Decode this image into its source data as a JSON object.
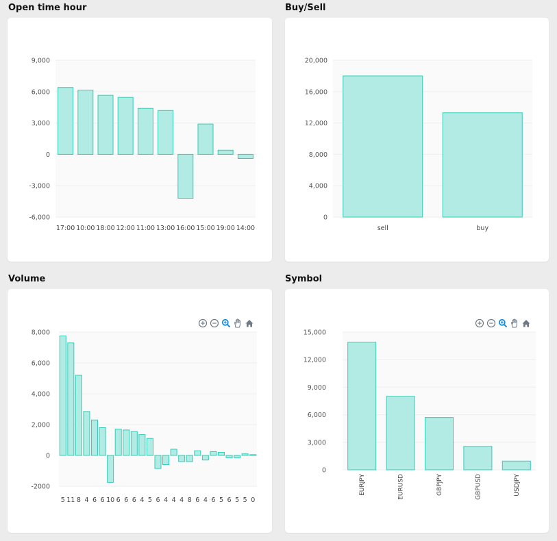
{
  "panels": {
    "open_time": {
      "title": "Open time hour"
    },
    "buy_sell": {
      "title": "Buy/Sell"
    },
    "volume": {
      "title": "Volume"
    },
    "symbol": {
      "title": "Symbol"
    }
  },
  "toolbar_icons": [
    "zoom-in-icon",
    "zoom-out-icon",
    "zoom-selection-icon",
    "pan-icon",
    "reset-home-icon"
  ],
  "colors": {
    "bar_fill": "#b2ebe3",
    "bar_stroke": "#33cdb6",
    "zoom_active": "#1a8ce0",
    "icon_gray": "#6e7a86"
  },
  "chart_data": [
    {
      "id": "open_time",
      "type": "bar",
      "title": "Open time hour",
      "categories": [
        "17:00",
        "10:00",
        "18:00",
        "12:00",
        "11:00",
        "13:00",
        "16:00",
        "15:00",
        "19:00",
        "14:00"
      ],
      "values": [
        6400,
        6150,
        5650,
        5450,
        4400,
        4200,
        -4200,
        2900,
        400,
        -400
      ],
      "ylim": [
        -6000,
        9000
      ],
      "yticks": [
        -6000,
        -3000,
        0,
        3000,
        6000,
        9000
      ],
      "ytick_labels": [
        "-6,000",
        "-3,000",
        "0",
        "3,000",
        "6,000",
        "9,000"
      ],
      "grid": true
    },
    {
      "id": "buy_sell",
      "type": "bar",
      "title": "Buy/Sell",
      "categories": [
        "sell",
        "buy"
      ],
      "values": [
        18000,
        13300
      ],
      "ylim": [
        0,
        20000
      ],
      "yticks": [
        0,
        4000,
        8000,
        12000,
        16000,
        20000
      ],
      "ytick_labels": [
        "0",
        "4,000",
        "8,000",
        "12,000",
        "16,000",
        "20,000"
      ],
      "grid": true
    },
    {
      "id": "volume",
      "type": "bar",
      "title": "Volume",
      "categories": [
        "5",
        "11",
        "8",
        "4",
        "6",
        "6",
        "10",
        "6",
        "6",
        "6",
        "4",
        "5",
        "6",
        "4",
        "4",
        "4",
        "8",
        "6",
        "4",
        "6",
        "5",
        "6",
        "5",
        "5",
        "0"
      ],
      "values": [
        7750,
        7300,
        5200,
        2850,
        2300,
        1800,
        -1750,
        1700,
        1650,
        1550,
        1350,
        1100,
        -850,
        -600,
        400,
        -400,
        -400,
        300,
        -300,
        250,
        200,
        -150,
        -150,
        100,
        50
      ],
      "ylim": [
        -2000,
        8000
      ],
      "yticks": [
        -2000,
        0,
        2000,
        4000,
        6000,
        8000
      ],
      "ytick_labels": [
        "-2000",
        "0",
        "2,000",
        "4,000",
        "6,000",
        "8,000"
      ],
      "grid": true
    },
    {
      "id": "symbol",
      "type": "bar",
      "title": "Symbol",
      "categories": [
        "EURJPY",
        "EURUSD",
        "GBPJPY",
        "GBPUSD",
        "USDJPY"
      ],
      "values": [
        13900,
        8000,
        5700,
        2550,
        950
      ],
      "ylim": [
        0,
        15000
      ],
      "yticks": [
        0,
        3000,
        6000,
        9000,
        12000,
        15000
      ],
      "ytick_labels": [
        "0",
        "3,000",
        "6,000",
        "9,000",
        "12,000",
        "15,000"
      ],
      "grid": true
    }
  ]
}
